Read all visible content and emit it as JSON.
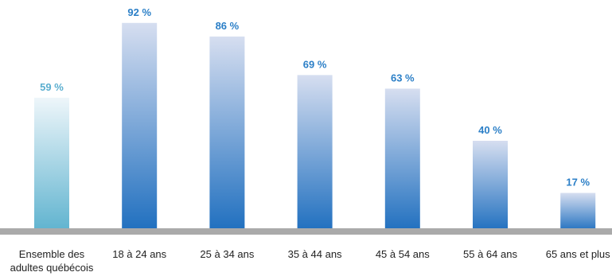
{
  "chart_data": {
    "type": "bar",
    "categories": [
      [
        "Ensemble des",
        "adultes québécois"
      ],
      [
        "18 à 24 ans"
      ],
      [
        "25 à 34 ans"
      ],
      [
        "35 à 44 ans"
      ],
      [
        "45 à 54 ans"
      ],
      [
        "55 à 64 ans"
      ],
      [
        "65 ans et plus"
      ]
    ],
    "values": [
      59,
      92,
      86,
      69,
      63,
      40,
      17
    ],
    "value_labels": [
      "59 %",
      "92 %",
      "86 %",
      "69 %",
      "63 %",
      "40 %",
      "17 %"
    ],
    "title": "",
    "xlabel": "",
    "ylabel": "",
    "ylim": [
      0,
      100
    ],
    "grid": false,
    "legend": "none",
    "colors": {
      "highlight_bar_top": "#eef6fa",
      "highlight_bar_bottom": "#5fb3cf",
      "highlight_label": "#5aaecf",
      "bar_top": "#d6def0",
      "bar_bottom": "#1f6fbf",
      "bar_label": "#2b7fc7",
      "baseline": "#aaaaaa"
    }
  }
}
